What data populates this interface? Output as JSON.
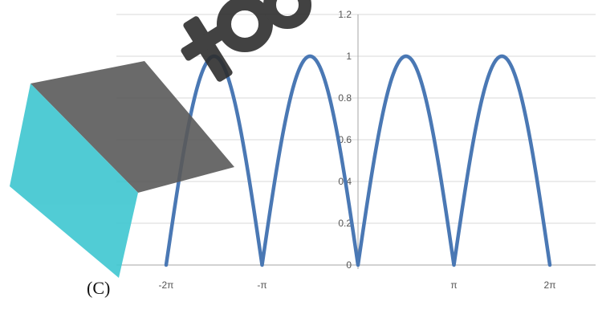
{
  "caption": "(C)",
  "colors": {
    "series": "#4a78b4",
    "grid": "#d9d9d9",
    "axis": "#a6a6a6"
  },
  "chart_data": {
    "type": "line",
    "title": "",
    "xlabel": "",
    "ylabel": "",
    "function": "|sin(x)|",
    "xlim": [
      -6.283185,
      6.283185
    ],
    "ylim": [
      0,
      1.2
    ],
    "grid": "horizontal",
    "x_ticks": [
      {
        "value": -6.283185,
        "label": "-2π"
      },
      {
        "value": -3.141593,
        "label": "-π"
      },
      {
        "value": 3.141593,
        "label": "π"
      },
      {
        "value": 6.283185,
        "label": "2π"
      }
    ],
    "y_ticks": [
      {
        "value": 0,
        "label": "0"
      },
      {
        "value": 0.2,
        "label": "0.2"
      },
      {
        "value": 0.4,
        "label": "0.4"
      },
      {
        "value": 0.6,
        "label": "0.6"
      },
      {
        "value": 0.8,
        "label": "0.8"
      },
      {
        "value": 1.0,
        "label": "1"
      },
      {
        "value": 1.2,
        "label": "1.2"
      }
    ],
    "series": [
      {
        "x": [
          -6.283185,
          -5.497787,
          -4.712389,
          -3.926991,
          -3.141593,
          -2.356194,
          -1.570796,
          -0.785398,
          0,
          0.785398,
          1.570796,
          2.356194,
          3.141593,
          3.926991,
          4.712389,
          5.497787,
          6.283185
        ],
        "y": [
          0,
          0.707,
          1,
          0.707,
          0,
          0.707,
          1,
          0.707,
          0,
          0.707,
          1,
          0.707,
          0,
          0.707,
          1,
          0.707,
          0
        ]
      }
    ]
  }
}
